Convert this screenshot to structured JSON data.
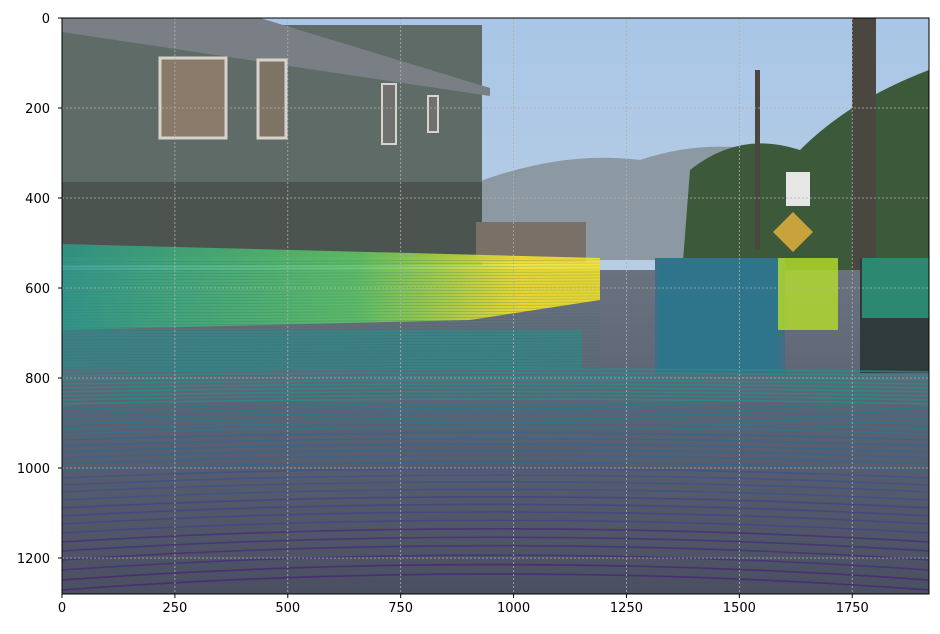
{
  "chart_data": {
    "type": "scatter",
    "description_kind": "lidar-points-over-camera-image",
    "xlim": [
      0,
      1920
    ],
    "ylim": [
      1280,
      0
    ],
    "x_ticks": [
      0,
      250,
      500,
      750,
      1000,
      1250,
      1500,
      1750
    ],
    "y_ticks": [
      0,
      200,
      400,
      600,
      800,
      1000,
      1200
    ],
    "x_tick_labels": [
      "0",
      "250",
      "500",
      "750",
      "1000",
      "1250",
      "1500",
      "1750"
    ],
    "y_tick_labels": [
      "0",
      "200",
      "400",
      "600",
      "800",
      "1000",
      "1200"
    ],
    "grid": true,
    "colormap": "viridis",
    "colors": {
      "viridis_low": "#440154",
      "viridis_mid": "#21918c",
      "viridis_high": "#fde725",
      "sky": "#aac4de",
      "building": "#5f6b66",
      "road": "#5a6072"
    }
  }
}
